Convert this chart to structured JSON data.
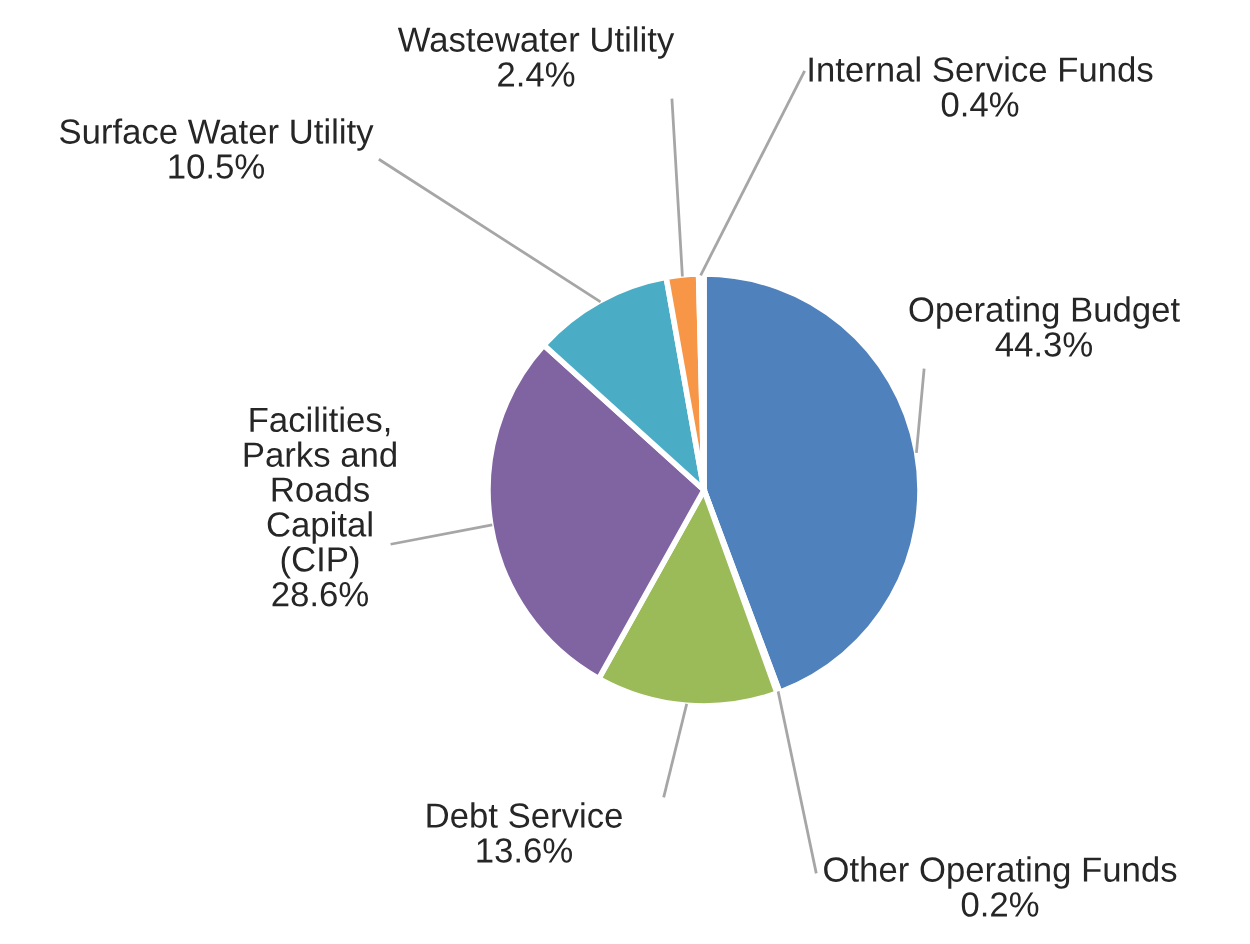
{
  "chart_data": {
    "type": "pie",
    "categories": [
      "Operating Budget",
      "Other Operating Funds",
      "Debt Service",
      "Facilities,\nParks and\nRoads\nCapital\n(CIP)",
      "Surface Water Utility",
      "Wastewater Utility",
      "Internal Service Funds"
    ],
    "values": [
      44.3,
      0.2,
      13.6,
      28.6,
      10.5,
      2.4,
      0.4
    ],
    "colors": [
      "#4f81bd",
      "#c0504d",
      "#9bbb59",
      "#8064a2",
      "#4bacc6",
      "#f79646",
      "#2c4d75"
    ],
    "value_labels": [
      "44.3%",
      "0.2%",
      "13.6%",
      "28.6%",
      "10.5%",
      "2.4%",
      "0.4%"
    ]
  }
}
